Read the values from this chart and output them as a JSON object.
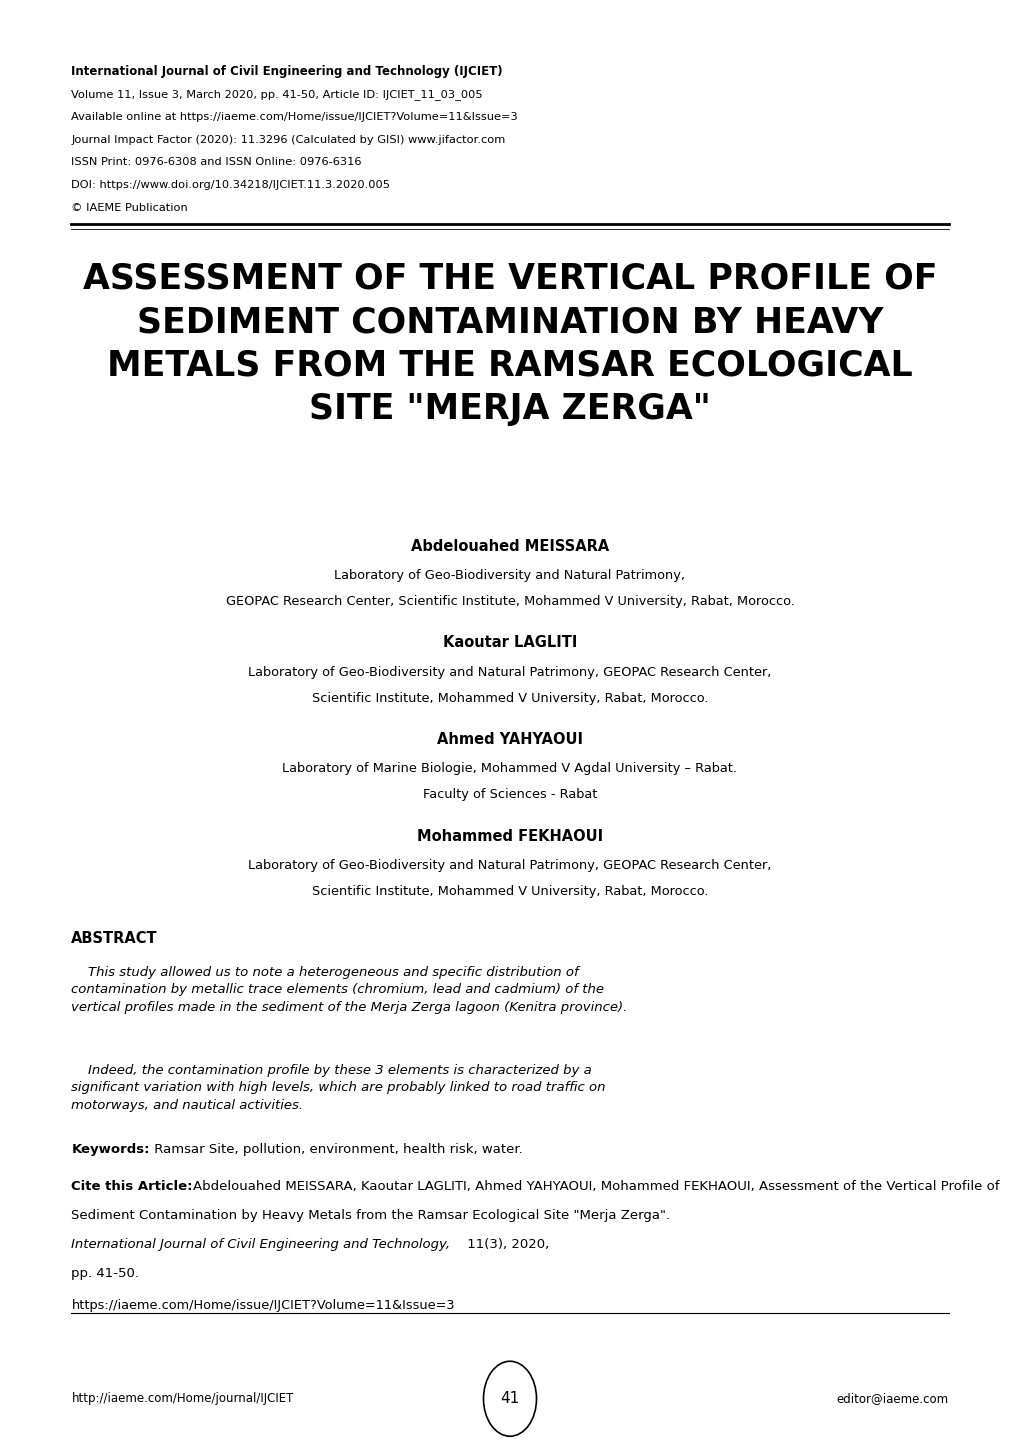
{
  "bg_color": "#ffffff",
  "header_line1_bold": "International Journal of Civil Engineering and Technology (IJCIET)",
  "header_line2": "Volume 11, Issue 3, March 2020, pp. 41-50, Article ID: IJCIET_11_03_005",
  "header_line3": "Available online at https://iaeme.com/Home/issue/IJCIET?Volume=11&Issue=3",
  "header_line4": "Journal Impact Factor (2020): 11.3296 (Calculated by GISI) www.jifactor.com",
  "header_line5": "ISSN Print: 0976-6308 and ISSN Online: 0976-6316",
  "header_line6": "DOI: https://www.doi.org/10.34218/IJCIET.11.3.2020.005",
  "header_line7": "© IAEME Publication",
  "main_title": "ASSESSMENT OF THE VERTICAL PROFILE OF\nSEDIMENT CONTAMINATION BY HEAVY\nMETALS FROM THE RAMSAR ECOLOGICAL\nSITE \"MERJA ZERGA\"",
  "author1_name": "Abdelouahed MEISSARA",
  "author1_affil1": "Laboratory of Geo-Biodiversity and Natural Patrimony,",
  "author1_affil2": "GEOPAC Research Center, Scientific Institute, Mohammed V University, Rabat, Morocco.",
  "author2_name": "Kaoutar LAGLITI",
  "author2_affil1": "Laboratory of Geo-Biodiversity and Natural Patrimony, GEOPAC Research Center,",
  "author2_affil2": "Scientific Institute, Mohammed V University, Rabat, Morocco.",
  "author3_name": "Ahmed YAHYAOUI",
  "author3_affil1": "Laboratory of Marine Biologie, Mohammed V Agdal University – Rabat.",
  "author3_affil2": "Faculty of Sciences - Rabat",
  "author4_name": "Mohammed FEKHAOUI",
  "author4_affil1": "Laboratory of Geo-Biodiversity and Natural Patrimony, GEOPAC Research Center,",
  "author4_affil2": "Scientific Institute, Mohammed V University, Rabat, Morocco.",
  "abstract_title": "ABSTRACT",
  "abstract_para1_indent": "    This study allowed us to note a heterogeneous and specific distribution of\ncontamination by metallic trace elements (chromium, lead and cadmium) of the\nvertical profiles made in the sediment of the Merja Zerga lagoon (Kenitra province).",
  "abstract_para2_indent": "    Indeed, the contamination profile by these 3 elements is characterized by a\nsignificant variation with high levels, which are probably linked to road traffic on\nmotorways, and nautical activities.",
  "keywords_label": "Keywords:",
  "keywords_text": " Ramsar Site, pollution, environment, health risk, water.",
  "cite_label": "Cite this Article:",
  "cite_line1": "Abdelouahed MEISSARA, Kaoutar LAGLITI, Ahmed YAHYAOUI, Mohammed FEKHAOUI, Assessment of the Vertical Profile of",
  "cite_line2": "Sediment Contamination by Heavy Metals from the Ramsar Ecological Site \"Merja Zerga\".",
  "cite_line3_italic": "International Journal of Civil Engineering and Technology,",
  "cite_line3_normal": " 11(3), 2020,",
  "cite_line4": "pp. 41-50.",
  "cite_url": "https://iaeme.com/Home/issue/IJCIET?Volume=11&Issue=3",
  "footer_left": "http://iaeme.com/Home/journal/IJCIET",
  "footer_page": "41",
  "footer_right": "editor@iaeme.com"
}
